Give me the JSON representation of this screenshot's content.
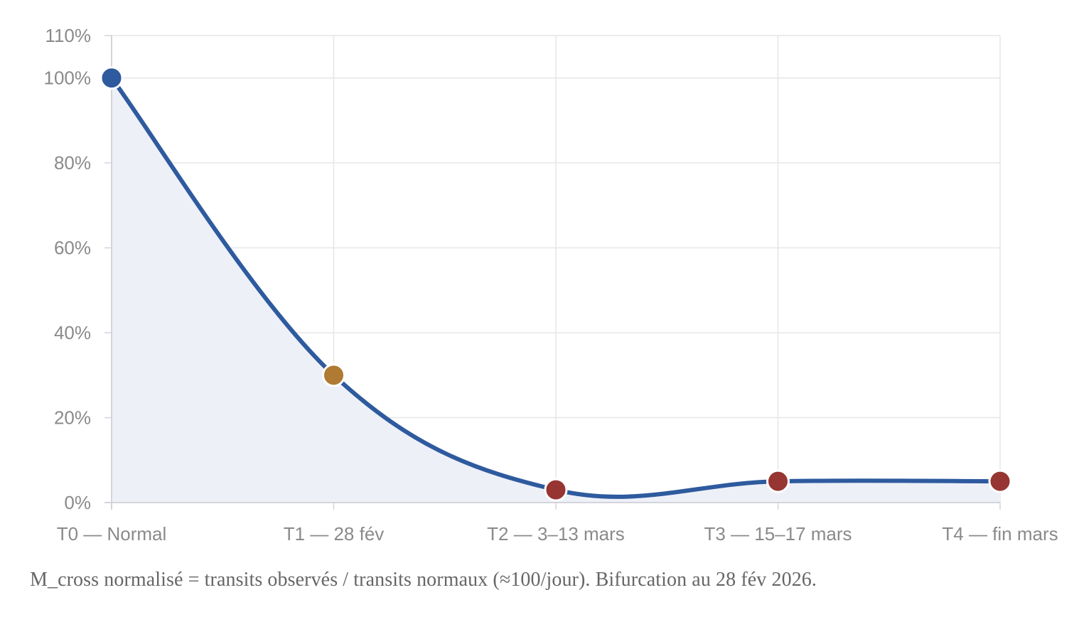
{
  "chart_data": {
    "type": "line",
    "categories": [
      "T0 — Normal",
      "T1 — 28 fév",
      "T2 — 3–13 mars",
      "T3 — 15–17 mars",
      "T4 — fin mars"
    ],
    "series": [
      {
        "values": [
          100,
          30,
          3,
          5,
          5
        ],
        "point_colors": [
          "#2e5a9e",
          "#b07a33",
          "#963531",
          "#963531",
          "#963531"
        ]
      }
    ],
    "y_ticks": [
      0,
      20,
      40,
      60,
      80,
      100,
      110
    ],
    "y_tick_labels": [
      "0%",
      "20%",
      "40%",
      "60%",
      "80%",
      "100%",
      "110%"
    ],
    "ylim": [
      0,
      110
    ],
    "grid": true,
    "line_color": "#2e5a9e",
    "fill_color": "#eef0f8",
    "smooth": true,
    "caption": "M_cross normalisé = transits observés / transits normaux (≈100/jour). Bifurcation au 28 fév 2026."
  }
}
